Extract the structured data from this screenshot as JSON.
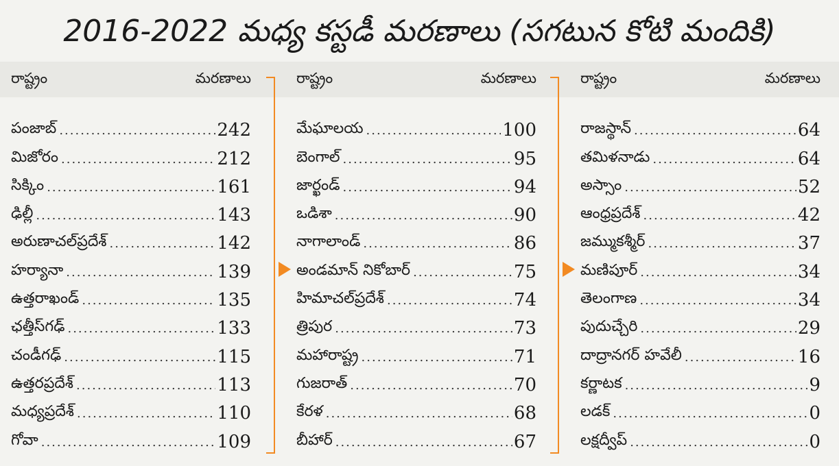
{
  "title": "2016-2022 మధ్య కస్టడీ మరణాలు (సగటున కోటి మందికి)",
  "headers": {
    "state": "రాష్ట్రం",
    "deaths": "మరణాలు"
  },
  "accent_color": "#f28a22",
  "columns": [
    {
      "rows": [
        {
          "name": "పంజాబ్",
          "value": "242"
        },
        {
          "name": "మిజోరం",
          "value": "212"
        },
        {
          "name": "సిక్కిం",
          "value": "161"
        },
        {
          "name": "ఢిల్లీ",
          "value": "143"
        },
        {
          "name": "అరుణాచల్‌ప్రదేశ్",
          "value": "142"
        },
        {
          "name": "హర్యానా",
          "value": "139"
        },
        {
          "name": "ఉత్తరాఖండ్",
          "value": "135"
        },
        {
          "name": "ఛత్తీస్‌గఢ్",
          "value": "133"
        },
        {
          "name": "చండీగఢ్",
          "value": "115"
        },
        {
          "name": "ఉత్తరప్రదేశ్",
          "value": "113"
        },
        {
          "name": "మధ్యప్రదేశ్",
          "value": "110"
        },
        {
          "name": "గోవా",
          "value": "109"
        }
      ]
    },
    {
      "rows": [
        {
          "name": "మేఘాలయ",
          "value": "100"
        },
        {
          "name": "బెంగాల్",
          "value": "95"
        },
        {
          "name": "జార్ఖండ్",
          "value": "94"
        },
        {
          "name": "ఒడిశా",
          "value": "90"
        },
        {
          "name": "నాగాలాండ్",
          "value": "86"
        },
        {
          "name": "అండమాన్ నికోబార్",
          "value": "75",
          "highlighted": true
        },
        {
          "name": "హిమాచల్‌ప్రదేశ్",
          "value": "74"
        },
        {
          "name": "త్రిపుర",
          "value": "73"
        },
        {
          "name": "మహారాష్ట్ర",
          "value": "71"
        },
        {
          "name": "గుజరాత్",
          "value": "70"
        },
        {
          "name": "కేరళ",
          "value": "68"
        },
        {
          "name": "బీహార్",
          "value": "67"
        }
      ]
    },
    {
      "rows": [
        {
          "name": "రాజస్థాన్",
          "value": "64"
        },
        {
          "name": "తమిళనాడు",
          "value": "64"
        },
        {
          "name": "అస్సాం",
          "value": "52"
        },
        {
          "name": "ఆంధ్రప్రదేశ్",
          "value": "42"
        },
        {
          "name": "జమ్ముకశ్మీర్",
          "value": "37"
        },
        {
          "name": "మణిపూర్",
          "value": "34",
          "highlighted": true
        },
        {
          "name": "తెలంగాణ",
          "value": "34"
        },
        {
          "name": "పుదుచ్చేరి",
          "value": "29"
        },
        {
          "name": "దాద్రానగర్ హవేలీ",
          "value": "16"
        },
        {
          "name": "కర్ణాటక",
          "value": "9"
        },
        {
          "name": "లడక్",
          "value": "0"
        },
        {
          "name": "లక్షద్వీప్",
          "value": "0"
        }
      ]
    }
  ]
}
